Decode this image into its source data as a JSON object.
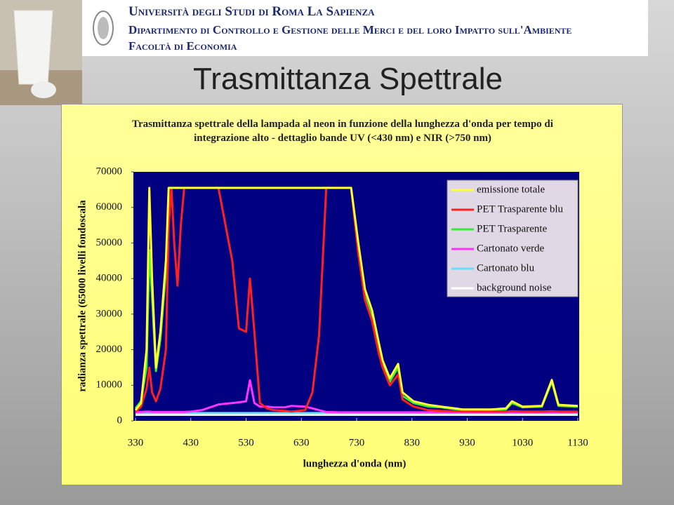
{
  "header": {
    "university": "Università degli Studi di Roma La Sapienza",
    "department": "Dipartimento di Controllo e Gestione delle Merci e del loro Impatto sull'Ambiente",
    "faculty": "Facoltà di Economia",
    "title": "Trasmittanza Spettrale"
  },
  "chart_data": {
    "type": "line",
    "title": "Trasmittanza spettrale della lampada al neon in funzione della lunghezza d'onda per tempo di integrazione alto - dettaglio bande UV (<430 nm) e NIR (>750 nm)",
    "x_label": "lunghezza d'onda (nm)",
    "y_label": "radianza spettrale (65000 livelli fondoscala",
    "xlim": [
      330,
      1130
    ],
    "xticks": [
      330,
      430,
      530,
      630,
      730,
      830,
      930,
      1030,
      1130
    ],
    "ylim": [
      0,
      70000
    ],
    "yticks": [
      0,
      10000,
      20000,
      30000,
      40000,
      50000,
      60000,
      70000
    ],
    "legend": "upper right",
    "x": [
      330,
      340,
      350,
      355,
      360,
      367,
      375,
      385,
      390,
      395,
      400,
      406,
      412,
      418,
      430,
      450,
      480,
      505,
      517,
      530,
      537,
      545,
      555,
      568,
      580,
      600,
      612,
      637,
      650,
      662,
      675,
      700,
      720,
      733,
      745,
      758,
      770,
      777,
      790,
      805,
      813,
      833,
      860,
      883,
      922,
      973,
      1000,
      1011,
      1030,
      1065,
      1083,
      1095,
      1130
    ],
    "series": [
      {
        "name": "emissione totale",
        "color": "#ffff33",
        "values": [
          3000,
          5000,
          20000,
          65500,
          40000,
          15000,
          25000,
          45000,
          65500,
          65500,
          65500,
          65500,
          65500,
          65500,
          65500,
          65500,
          65500,
          65500,
          65500,
          65500,
          65500,
          65500,
          65500,
          65500,
          65500,
          65500,
          65500,
          65500,
          65500,
          65500,
          65500,
          65500,
          65500,
          50000,
          37000,
          31000,
          22000,
          17000,
          12000,
          16000,
          8000,
          5500,
          4500,
          4000,
          3200,
          3200,
          3500,
          5500,
          4000,
          4200,
          11500,
          4500,
          4200
        ]
      },
      {
        "name": "PET Trasparente blu",
        "color": "#ff2020",
        "values": [
          2500,
          4000,
          9000,
          15000,
          8000,
          5500,
          9000,
          20000,
          55000,
          65500,
          50000,
          38000,
          55000,
          65500,
          65500,
          65500,
          65500,
          45000,
          26000,
          25000,
          40000,
          25000,
          5000,
          3500,
          3000,
          2800,
          2600,
          3000,
          8000,
          24000,
          65500,
          65500,
          65500,
          47000,
          34000,
          28000,
          19000,
          15000,
          10000,
          13000,
          6000,
          4000,
          3000,
          2800,
          2600,
          2600,
          2600,
          2700,
          2600,
          2600,
          2700,
          2600,
          2600
        ]
      },
      {
        "name": "PET Trasparente",
        "color": "#33ee33",
        "values": [
          3500,
          5500,
          15000,
          48000,
          35000,
          14000,
          23000,
          42000,
          65500,
          65500,
          65500,
          65500,
          65500,
          65500,
          65500,
          65500,
          65500,
          65500,
          65500,
          65500,
          65500,
          65500,
          65500,
          65500,
          65500,
          65500,
          65500,
          65500,
          65500,
          65500,
          65500,
          65500,
          65500,
          49000,
          35000,
          29000,
          20000,
          16000,
          11000,
          15000,
          7000,
          5000,
          4000,
          3800,
          3000,
          3000,
          3200,
          5000,
          3800,
          4000,
          11000,
          4200,
          4000
        ]
      },
      {
        "name": "Cartonato verde",
        "color": "#ff33ff",
        "values": [
          2500,
          2500,
          2600,
          2600,
          2500,
          2500,
          2500,
          2500,
          2500,
          2500,
          2500,
          2500,
          2500,
          2500,
          2600,
          3000,
          4600,
          5000,
          5200,
          5500,
          11400,
          5000,
          4000,
          4000,
          3800,
          3800,
          4200,
          4000,
          3500,
          3000,
          2500,
          2400,
          2400,
          2400,
          2400,
          2400,
          2400,
          2400,
          2400,
          2400,
          2400,
          2400,
          2400,
          2400,
          2400,
          2400,
          2400,
          2400,
          2400,
          2400,
          2400,
          2400,
          2400
        ]
      },
      {
        "name": "Cartonato blu",
        "color": "#66ddff",
        "values": [
          2200,
          2200,
          2200,
          2200,
          2200,
          2200,
          2200,
          2200,
          2200,
          2200,
          2200,
          2200,
          2200,
          2200,
          2200,
          2200,
          2200,
          2200,
          2200,
          2200,
          2200,
          2200,
          2200,
          2200,
          2200,
          2200,
          2200,
          2200,
          2200,
          2200,
          2200,
          2200,
          2200,
          2200,
          2200,
          2200,
          2200,
          2200,
          2200,
          2200,
          2200,
          2200,
          2200,
          2200,
          2200,
          2200,
          2200,
          2200,
          2200,
          2200,
          2200,
          2200,
          2200
        ]
      },
      {
        "name": "background noise",
        "color": "#ffffff",
        "values": [
          1700,
          1700,
          1700,
          1700,
          1700,
          1700,
          1700,
          1700,
          1700,
          1700,
          1700,
          1700,
          1700,
          1700,
          1700,
          1700,
          1700,
          1700,
          1700,
          1700,
          1700,
          1700,
          1700,
          1700,
          1700,
          1700,
          1700,
          1700,
          1700,
          1700,
          1700,
          1700,
          1700,
          1700,
          1700,
          1700,
          1700,
          1700,
          1700,
          1700,
          1700,
          1700,
          1700,
          1700,
          1700,
          1700,
          1700,
          1700,
          1700,
          1700,
          1700,
          1700,
          1700
        ]
      }
    ]
  }
}
